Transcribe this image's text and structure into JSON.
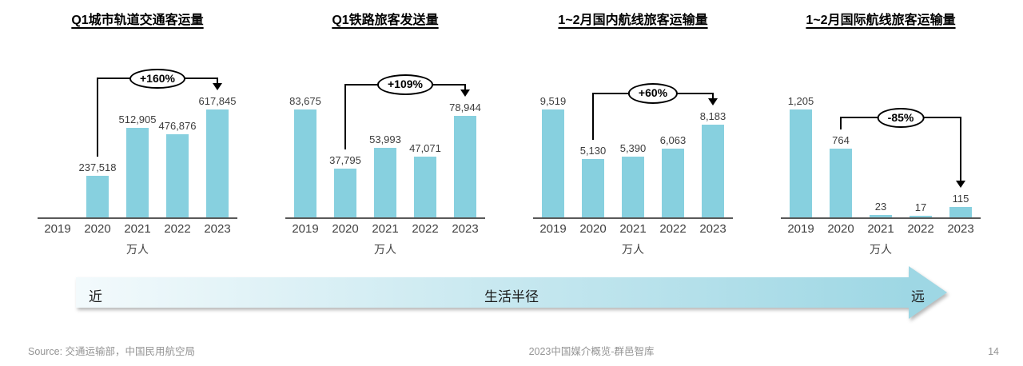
{
  "colors": {
    "bar": "#87d0df",
    "annotation_line": "#000000",
    "arrow_gradient_start": "#f3fafc",
    "arrow_gradient_end": "#9ed7e4",
    "arrow_head": "#9ed7e4"
  },
  "chart_data": [
    {
      "type": "bar",
      "title": "Q1城市轨道交通客运量",
      "unit": "万人",
      "categories": [
        "2019",
        "2020",
        "2021",
        "2022",
        "2023"
      ],
      "values": [
        null,
        237518,
        512905,
        476876,
        617845
      ],
      "value_labels": [
        "",
        "237,518",
        "512,905",
        "476,876",
        "617,845"
      ],
      "annotation": {
        "label": "+160%",
        "from": "2020",
        "to": "2023"
      },
      "grid": false,
      "y_axis": "hidden"
    },
    {
      "type": "bar",
      "title": "Q1铁路旅客发送量",
      "unit": "万人",
      "categories": [
        "2019",
        "2020",
        "2021",
        "2022",
        "2023"
      ],
      "values": [
        83675,
        37795,
        53993,
        47071,
        78944
      ],
      "value_labels": [
        "83,675",
        "37,795",
        "53,993",
        "47,071",
        "78,944"
      ],
      "annotation": {
        "label": "+109%",
        "from": "2020",
        "to": "2023"
      },
      "grid": false,
      "y_axis": "hidden"
    },
    {
      "type": "bar",
      "title": "1~2月国内航线旅客运输量",
      "unit": "万人",
      "categories": [
        "2019",
        "2020",
        "2021",
        "2022",
        "2023"
      ],
      "values": [
        9519,
        5130,
        5390,
        6063,
        8183
      ],
      "value_labels": [
        "9,519",
        "5,130",
        "5,390",
        "6,063",
        "8,183"
      ],
      "annotation": {
        "label": "+60%",
        "from": "2020",
        "to": "2023"
      },
      "grid": false,
      "y_axis": "hidden"
    },
    {
      "type": "bar",
      "title": "1~2月国际航线旅客运输量",
      "unit": "万人",
      "categories": [
        "2019",
        "2020",
        "2021",
        "2022",
        "2023"
      ],
      "values": [
        1205,
        764,
        23,
        17,
        115
      ],
      "value_labels": [
        "1,205",
        "764",
        "23",
        "17",
        "115"
      ],
      "annotation": {
        "label": "-85%",
        "from": "2020",
        "to": "2023"
      },
      "grid": false,
      "y_axis": "hidden"
    }
  ],
  "flow_arrow": {
    "left_label": "近",
    "center_label": "生活半径",
    "right_label": "远"
  },
  "footer": {
    "source": "Source: 交通运输部，中国民用航空局",
    "center": "2023中国媒介概览-群邑智库",
    "page_number": "14"
  }
}
